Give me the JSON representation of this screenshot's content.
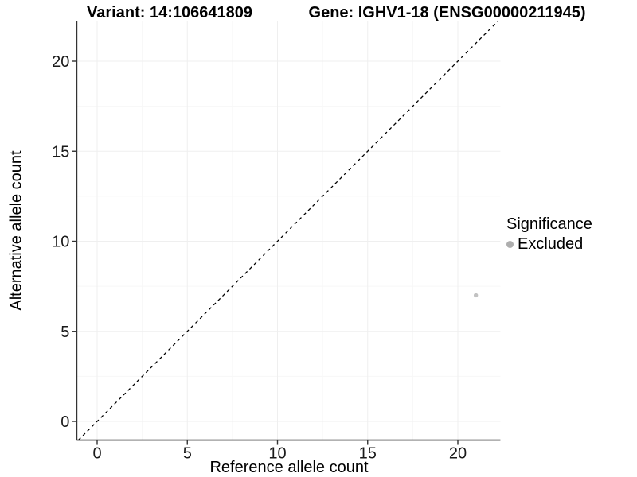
{
  "titles": {
    "variant": "Variant: 14:106641809",
    "gene": "Gene: IGHV1-18 (ENSG00000211945)"
  },
  "chart_data": {
    "type": "scatter",
    "title_left": "Variant: 14:106641809",
    "title_right": "Gene: IGHV1-18 (ENSG00000211945)",
    "xlabel": "Reference allele count",
    "ylabel": "Alternative allele count",
    "xlim": [
      -1.13,
      22.36
    ],
    "ylim": [
      -1.04,
      22.21
    ],
    "xticks": [
      0,
      5,
      10,
      15,
      20
    ],
    "yticks": [
      0,
      5,
      10,
      15,
      20
    ],
    "x_minor": [
      2.5,
      7.5,
      12.5,
      17.5
    ],
    "y_minor": [
      2.5,
      7.5,
      12.5,
      17.5
    ],
    "grid": "major and minor, very faint",
    "points": [
      {
        "x": 21,
        "y": 7,
        "significance": "Excluded"
      }
    ],
    "abline": {
      "slope": 1,
      "intercept": 0,
      "style": "dashed",
      "color": "#000000"
    },
    "legend": {
      "title": "Significance",
      "position": "right",
      "items": [
        {
          "label": "Excluded",
          "color": "#aeaeae"
        }
      ]
    },
    "colors": {
      "point": "#c2c2c2",
      "grid_major": "#efefef",
      "grid_minor": "#f7f7f7",
      "axis": "#333333",
      "tick_text": "#1a1a1a"
    }
  }
}
